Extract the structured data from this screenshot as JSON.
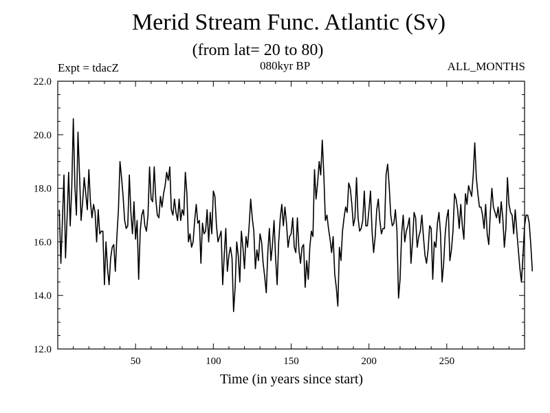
{
  "chart_data": {
    "type": "line",
    "title": "Merid Stream Func. Atlantic (Sv)",
    "subtitle": "(from lat= 20 to 80)",
    "annotations": {
      "left": "Expt = tdacZ",
      "center": "080kyr BP",
      "right": "ALL_MONTHS"
    },
    "xlabel": "Time (in years since start)",
    "ylabel": "",
    "xlim": [
      0,
      300
    ],
    "ylim": [
      12.0,
      22.0
    ],
    "x_ticks": [
      50,
      100,
      150,
      200,
      250
    ],
    "x_tick_labels": [
      "50",
      "100",
      "150",
      "200",
      "250"
    ],
    "y_ticks": [
      12.0,
      14.0,
      16.0,
      18.0,
      20.0,
      22.0
    ],
    "y_tick_labels": [
      "12.0",
      "14.0",
      "16.0",
      "18.0",
      "20.0",
      "22.0"
    ],
    "series": [
      {
        "name": "Merid Stream Func. Atlantic",
        "color": "#000000",
        "x_start": 1,
        "x_step": 1,
        "values": [
          17.2,
          15.2,
          16.8,
          18.5,
          15.4,
          16.9,
          18.6,
          16.6,
          18.0,
          20.6,
          18.1,
          17.0,
          20.1,
          18.5,
          16.8,
          17.5,
          18.4,
          17.8,
          17.2,
          18.7,
          17.5,
          16.9,
          17.4,
          17.1,
          16.0,
          17.2,
          16.3,
          16.4,
          16.4,
          14.4,
          16.0,
          15.0,
          14.4,
          15.4,
          15.8,
          15.9,
          14.9,
          16.2,
          17.2,
          19.0,
          18.4,
          17.7,
          16.8,
          16.5,
          16.6,
          18.5,
          17.1,
          16.3,
          17.5,
          16.1,
          16.8,
          14.6,
          16.4,
          17.0,
          17.2,
          16.6,
          16.4,
          17.0,
          18.8,
          17.6,
          17.5,
          18.8,
          17.6,
          17.0,
          16.9,
          17.7,
          17.3,
          17.8,
          18.1,
          18.6,
          18.3,
          18.8,
          17.2,
          17.0,
          17.6,
          17.1,
          16.8,
          17.6,
          16.8,
          17.2,
          17.0,
          18.6,
          17.8,
          16.0,
          16.3,
          15.8,
          16.0,
          16.8,
          17.4,
          16.7,
          16.8,
          15.2,
          16.7,
          16.3,
          16.4,
          17.2,
          16.0,
          17.1,
          16.3,
          17.9,
          17.7,
          16.6,
          16.0,
          16.2,
          16.4,
          14.4,
          15.5,
          16.5,
          14.9,
          15.5,
          15.8,
          15.4,
          13.4,
          14.3,
          16.0,
          15.5,
          14.5,
          16.4,
          15.8,
          15.0,
          16.2,
          15.8,
          16.6,
          17.6,
          16.9,
          16.4,
          15.0,
          15.7,
          15.3,
          16.3,
          16.0,
          15.2,
          14.7,
          14.1,
          15.6,
          16.5,
          15.3,
          15.9,
          16.8,
          15.4,
          14.4,
          16.0,
          16.9,
          17.4,
          16.6,
          17.3,
          16.7,
          15.8,
          16.2,
          16.3,
          16.9,
          15.8,
          15.6,
          16.9,
          15.7,
          15.2,
          15.8,
          15.9,
          14.3,
          15.3,
          14.6,
          15.8,
          16.4,
          16.2,
          18.7,
          17.6,
          18.2,
          19.0,
          18.5,
          19.8,
          18.5,
          16.8,
          17.0,
          16.5,
          16.1,
          15.6,
          16.2,
          14.8,
          14.3,
          13.6,
          15.8,
          15.3,
          16.4,
          16.9,
          17.3,
          17.1,
          18.2,
          18.0,
          17.4,
          16.6,
          16.9,
          18.4,
          16.9,
          16.4,
          16.5,
          16.8,
          17.9,
          16.6,
          16.6,
          17.2,
          17.9,
          16.4,
          15.6,
          16.2,
          17.2,
          17.6,
          16.8,
          16.3,
          16.5,
          16.5,
          18.5,
          18.9,
          18.1,
          17.0,
          16.6,
          16.7,
          17.2,
          16.4,
          13.9,
          14.6,
          16.3,
          17.0,
          16.0,
          16.4,
          16.6,
          16.9,
          15.2,
          16.0,
          17.1,
          16.9,
          15.8,
          16.2,
          16.4,
          17.0,
          16.2,
          15.5,
          15.2,
          15.7,
          16.6,
          16.5,
          14.6,
          16.0,
          15.8,
          16.7,
          17.1,
          16.3,
          14.5,
          15.2,
          16.3,
          16.9,
          17.2,
          15.3,
          15.7,
          16.4,
          17.8,
          17.6,
          17.2,
          16.5,
          17.4,
          16.6,
          16.1,
          17.8,
          17.4,
          18.1,
          17.9,
          17.7,
          18.5,
          19.7,
          18.4,
          17.8,
          17.3,
          17.3,
          17.0,
          16.5,
          17.4,
          16.3,
          15.9,
          17.1,
          18.0,
          17.3,
          17.1,
          16.9,
          17.3,
          16.7,
          17.5,
          16.9,
          15.8,
          16.5,
          18.4,
          17.4,
          17.1,
          17.0,
          16.3,
          17.2,
          16.4,
          15.7,
          15.0,
          14.5,
          15.5,
          16.6,
          17.0,
          17.0,
          16.7,
          15.9,
          14.9
        ]
      }
    ]
  }
}
